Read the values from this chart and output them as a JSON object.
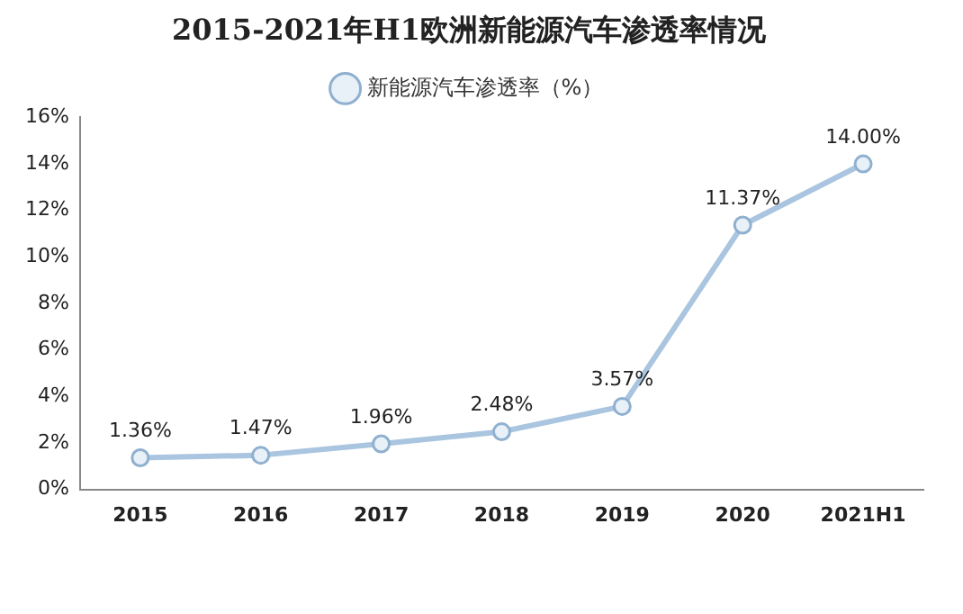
{
  "chart_data": {
    "type": "line",
    "title": "2015-2021年H1欧洲新能源汽车渗透率情况",
    "categories": [
      "2015",
      "2016",
      "2017",
      "2018",
      "2019",
      "2020",
      "2021H1"
    ],
    "series": [
      {
        "name": "新能源汽车渗透率（%）",
        "color": "#a9c5df",
        "values": [
          1.36,
          1.47,
          1.96,
          2.48,
          3.57,
          11.37,
          14.0
        ],
        "value_labels": [
          "1.36%",
          "1.47%",
          "1.96%",
          "2.48%",
          "3.57%",
          "11.37%",
          "14.00%"
        ]
      }
    ],
    "ylim": [
      0,
      16
    ],
    "yticks": [
      {
        "value": 0,
        "label": "0%"
      },
      {
        "value": 2,
        "label": "2%"
      },
      {
        "value": 4,
        "label": "4%"
      },
      {
        "value": 6,
        "label": "6%"
      },
      {
        "value": 8,
        "label": "8%"
      },
      {
        "value": 10,
        "label": "10%"
      },
      {
        "value": 12,
        "label": "12%"
      },
      {
        "value": 14,
        "label": "14%"
      },
      {
        "value": 16,
        "label": "16%"
      }
    ],
    "grid": false,
    "legend": "top",
    "marker": "circle",
    "line_style": "solid"
  }
}
